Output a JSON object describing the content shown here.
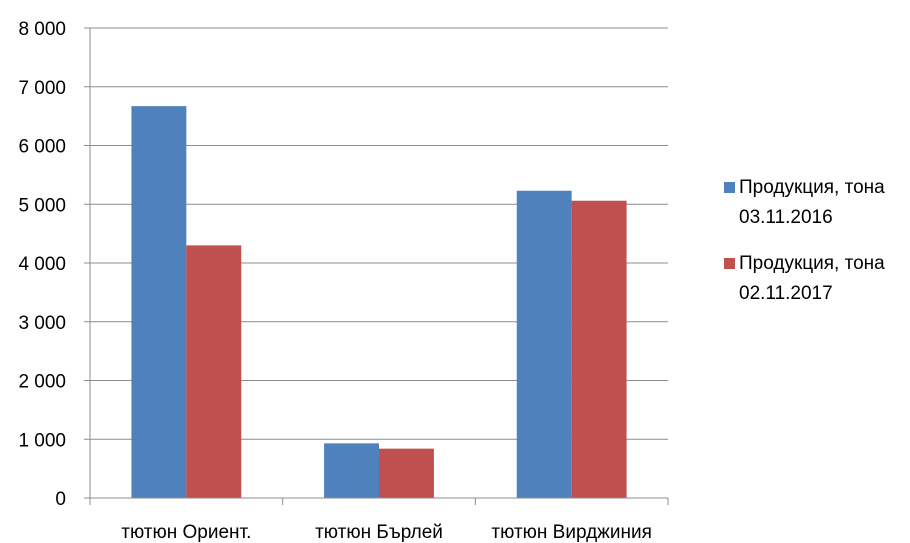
{
  "chart_data": {
    "type": "bar",
    "categories": [
      "тютюн Ориент.",
      "тютюн Бърлей",
      "тютюн Вирджиния"
    ],
    "series": [
      {
        "name": "Продукция, тона 03.11.2016",
        "name_lines": [
          "Продукция, тона",
          "03.11.2016"
        ],
        "color": "#4F81BD",
        "values": [
          6670,
          930,
          5230
        ]
      },
      {
        "name": "Продукция, тона 02.11.2017",
        "name_lines": [
          "Продукция, тона",
          "02.11.2017"
        ],
        "color": "#C0504D",
        "values": [
          4300,
          840,
          5060
        ]
      }
    ],
    "ylim": [
      0,
      8000
    ],
    "yticks": [
      0,
      1000,
      2000,
      3000,
      4000,
      5000,
      6000,
      7000,
      8000
    ],
    "ytick_labels": [
      "0",
      "1 000",
      "2 000",
      "3 000",
      "4 000",
      "5 000",
      "6 000",
      "7 000",
      "8 000"
    ],
    "grid": true,
    "legend_position": "right",
    "title": "",
    "xlabel": "",
    "ylabel": ""
  }
}
